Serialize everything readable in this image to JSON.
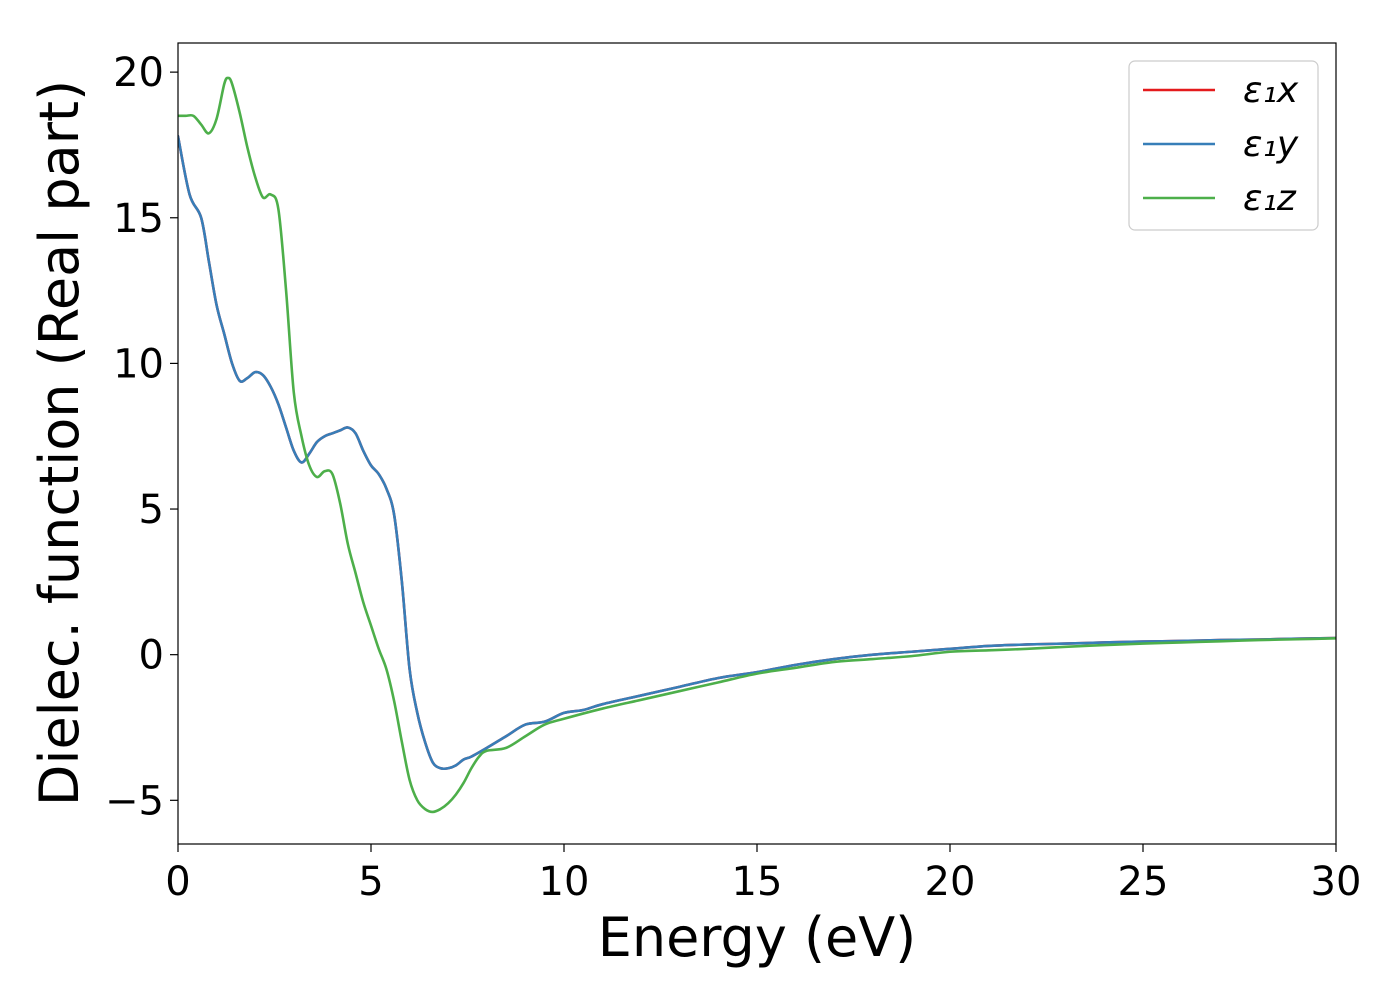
{
  "chart_data": {
    "type": "line",
    "xlabel": "Energy (eV)",
    "ylabel": "Dielec. function (Real part)",
    "xlim": [
      0,
      30
    ],
    "ylim": [
      -6.5,
      21
    ],
    "xticks": [
      0,
      5,
      10,
      15,
      20,
      25,
      30
    ],
    "xtick_labels": [
      "0",
      "5",
      "10",
      "15",
      "20",
      "25",
      "30"
    ],
    "yticks": [
      -5,
      0,
      5,
      10,
      15,
      20
    ],
    "ytick_labels": [
      "−5",
      "0",
      "5",
      "10",
      "15",
      "20"
    ],
    "grid": false,
    "legend_position": "top-right",
    "series": [
      {
        "name": "ε₁x",
        "color": "#e41a1c",
        "x": [
          0,
          0.3,
          0.6,
          0.8,
          1.0,
          1.2,
          1.4,
          1.6,
          1.8,
          2.0,
          2.2,
          2.4,
          2.6,
          2.8,
          3.0,
          3.2,
          3.4,
          3.6,
          3.8,
          4.0,
          4.2,
          4.4,
          4.6,
          4.8,
          5.0,
          5.2,
          5.4,
          5.6,
          5.8,
          6.0,
          6.2,
          6.4,
          6.6,
          6.8,
          7.0,
          7.2,
          7.4,
          7.6,
          8.0,
          8.5,
          9.0,
          9.5,
          10.0,
          10.5,
          11.0,
          12.0,
          13.0,
          14.0,
          15.0,
          16.0,
          17.0,
          18.0,
          19.0,
          20.0,
          21.0,
          22.0,
          23.0,
          24.0,
          25.0,
          26.0,
          27.0,
          28.0,
          29.0,
          30.0
        ],
        "y": [
          17.8,
          15.8,
          15.0,
          13.5,
          12.0,
          11.0,
          10.0,
          9.4,
          9.5,
          9.7,
          9.6,
          9.2,
          8.6,
          7.8,
          7.0,
          6.6,
          6.9,
          7.3,
          7.5,
          7.6,
          7.7,
          7.8,
          7.6,
          7.0,
          6.5,
          6.2,
          5.7,
          4.8,
          2.5,
          -0.5,
          -2.0,
          -3.0,
          -3.7,
          -3.9,
          -3.9,
          -3.8,
          -3.6,
          -3.5,
          -3.2,
          -2.8,
          -2.4,
          -2.3,
          -2.0,
          -1.9,
          -1.7,
          -1.4,
          -1.1,
          -0.8,
          -0.6,
          -0.35,
          -0.15,
          0.0,
          0.1,
          0.2,
          0.3,
          0.35,
          0.38,
          0.42,
          0.45,
          0.47,
          0.5,
          0.52,
          0.55,
          0.57
        ]
      },
      {
        "name": "ε₁y",
        "color": "#377eb8",
        "x": [
          0,
          0.3,
          0.6,
          0.8,
          1.0,
          1.2,
          1.4,
          1.6,
          1.8,
          2.0,
          2.2,
          2.4,
          2.6,
          2.8,
          3.0,
          3.2,
          3.4,
          3.6,
          3.8,
          4.0,
          4.2,
          4.4,
          4.6,
          4.8,
          5.0,
          5.2,
          5.4,
          5.6,
          5.8,
          6.0,
          6.2,
          6.4,
          6.6,
          6.8,
          7.0,
          7.2,
          7.4,
          7.6,
          8.0,
          8.5,
          9.0,
          9.5,
          10.0,
          10.5,
          11.0,
          12.0,
          13.0,
          14.0,
          15.0,
          16.0,
          17.0,
          18.0,
          19.0,
          20.0,
          21.0,
          22.0,
          23.0,
          24.0,
          25.0,
          26.0,
          27.0,
          28.0,
          29.0,
          30.0
        ],
        "y": [
          17.8,
          15.8,
          15.0,
          13.5,
          12.0,
          11.0,
          10.0,
          9.4,
          9.5,
          9.7,
          9.6,
          9.2,
          8.6,
          7.8,
          7.0,
          6.6,
          6.9,
          7.3,
          7.5,
          7.6,
          7.7,
          7.8,
          7.6,
          7.0,
          6.5,
          6.2,
          5.7,
          4.8,
          2.5,
          -0.5,
          -2.0,
          -3.0,
          -3.7,
          -3.9,
          -3.9,
          -3.8,
          -3.6,
          -3.5,
          -3.2,
          -2.8,
          -2.4,
          -2.3,
          -2.0,
          -1.9,
          -1.7,
          -1.4,
          -1.1,
          -0.8,
          -0.6,
          -0.35,
          -0.15,
          0.0,
          0.1,
          0.2,
          0.3,
          0.35,
          0.38,
          0.42,
          0.45,
          0.47,
          0.5,
          0.52,
          0.55,
          0.57
        ]
      },
      {
        "name": "ε₁z",
        "color": "#4daf4a",
        "x": [
          0,
          0.2,
          0.4,
          0.6,
          0.8,
          1.0,
          1.2,
          1.3,
          1.4,
          1.6,
          1.8,
          2.0,
          2.2,
          2.4,
          2.6,
          2.8,
          3.0,
          3.2,
          3.4,
          3.6,
          3.8,
          4.0,
          4.2,
          4.4,
          4.6,
          4.8,
          5.0,
          5.2,
          5.4,
          5.6,
          5.8,
          6.0,
          6.2,
          6.4,
          6.6,
          6.8,
          7.0,
          7.2,
          7.4,
          7.6,
          7.8,
          8.0,
          8.5,
          9.0,
          9.5,
          10.0,
          11.0,
          12.0,
          13.0,
          14.0,
          15.0,
          16.0,
          17.0,
          18.0,
          19.0,
          20.0,
          21.0,
          22.0,
          23.0,
          24.0,
          25.0,
          26.0,
          27.0,
          28.0,
          29.0,
          30.0
        ],
        "y": [
          18.5,
          18.5,
          18.5,
          18.2,
          17.9,
          18.4,
          19.6,
          19.8,
          19.6,
          18.6,
          17.4,
          16.4,
          15.7,
          15.8,
          15.3,
          12.5,
          9.0,
          7.5,
          6.5,
          6.1,
          6.3,
          6.2,
          5.2,
          3.8,
          2.8,
          1.8,
          1.0,
          0.2,
          -0.5,
          -1.6,
          -3.0,
          -4.3,
          -5.0,
          -5.3,
          -5.4,
          -5.3,
          -5.1,
          -4.8,
          -4.4,
          -3.9,
          -3.5,
          -3.3,
          -3.2,
          -2.8,
          -2.4,
          -2.2,
          -1.85,
          -1.55,
          -1.25,
          -0.95,
          -0.65,
          -0.45,
          -0.25,
          -0.15,
          -0.05,
          0.1,
          0.15,
          0.2,
          0.27,
          0.33,
          0.38,
          0.42,
          0.46,
          0.5,
          0.53,
          0.56
        ]
      }
    ]
  }
}
